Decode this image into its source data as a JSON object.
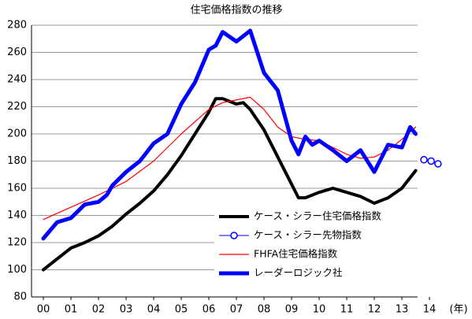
{
  "chart_data": {
    "type": "line",
    "title": "住宅価格指数の推移",
    "xlabel": "(年)",
    "xlim": [
      1999.57,
      2014.6
    ],
    "ylim": [
      80,
      280
    ],
    "xticks": [
      {
        "value": 2000,
        "label": "00"
      },
      {
        "value": 2001,
        "label": "01"
      },
      {
        "value": 2002,
        "label": "02"
      },
      {
        "value": 2003,
        "label": "03"
      },
      {
        "value": 2004,
        "label": "04"
      },
      {
        "value": 2005,
        "label": "05"
      },
      {
        "value": 2006,
        "label": "06"
      },
      {
        "value": 2007,
        "label": "07"
      },
      {
        "value": 2008,
        "label": "08"
      },
      {
        "value": 2009,
        "label": "09"
      },
      {
        "value": 2010,
        "label": "10"
      },
      {
        "value": 2011,
        "label": "11"
      },
      {
        "value": 2012,
        "label": "12"
      },
      {
        "value": 2013,
        "label": "13"
      },
      {
        "value": 2014,
        "label": "14"
      }
    ],
    "yticks": [
      80,
      100,
      120,
      140,
      160,
      180,
      200,
      220,
      240,
      260,
      280
    ],
    "grid": true,
    "legend": "lower right",
    "series": [
      {
        "name": "ケース・シラー住宅価格指数",
        "color": "#000000",
        "width": 4,
        "x": [
          2000,
          2000.5,
          2001,
          2001.5,
          2002,
          2002.5,
          2003,
          2003.5,
          2004,
          2004.5,
          2005,
          2005.5,
          2006,
          2006.25,
          2006.5,
          2007,
          2007.25,
          2007.5,
          2008,
          2008.5,
          2009,
          2009.25,
          2009.5,
          2010,
          2010.5,
          2011,
          2011.5,
          2012,
          2012.5,
          2013,
          2013.5
        ],
        "values": [
          100,
          108,
          116,
          120,
          125,
          132,
          141,
          149,
          158,
          170,
          184,
          200,
          216,
          226,
          226,
          222,
          223,
          218,
          203,
          183,
          163,
          153,
          153,
          157,
          160,
          157,
          154,
          149,
          153,
          160,
          173
        ]
      },
      {
        "name": "ケース・シラー先物指数",
        "color": "#0000ff",
        "width": 1,
        "marker": "circle",
        "x": [
          2013.8,
          2014.06,
          2014.31
        ],
        "values": [
          181,
          180,
          178
        ]
      },
      {
        "name": "FHFA住宅価格指数",
        "color": "#ff0000",
        "width": 1.2,
        "x": [
          2000,
          2001,
          2002,
          2003,
          2004,
          2005,
          2006,
          2006.5,
          2007,
          2007.5,
          2008,
          2008.5,
          2009,
          2009.5,
          2010,
          2010.5,
          2011,
          2011.5,
          2012,
          2012.5,
          2013,
          2013.5
        ],
        "values": [
          137,
          146,
          155,
          165,
          180,
          200,
          218,
          223,
          225,
          227,
          218,
          205,
          198,
          196,
          195,
          190,
          185,
          182,
          183,
          188,
          196,
          205
        ]
      },
      {
        "name": "レーダーロジック社",
        "color": "#0000ff",
        "width": 5,
        "x": [
          2000,
          2000.5,
          2001,
          2001.5,
          2002,
          2002.3,
          2002.5,
          2003,
          2003.5,
          2004,
          2004.5,
          2005,
          2005.5,
          2006,
          2006.25,
          2006.5,
          2007,
          2007.25,
          2007.5,
          2008,
          2008.5,
          2009,
          2009.25,
          2009.5,
          2009.75,
          2010,
          2010.5,
          2011,
          2011.5,
          2012,
          2012.5,
          2013,
          2013.3,
          2013.5
        ],
        "values": [
          123,
          135,
          138,
          148,
          150,
          155,
          162,
          172,
          180,
          193,
          200,
          222,
          238,
          262,
          265,
          275,
          268,
          272,
          276,
          245,
          232,
          195,
          185,
          198,
          192,
          195,
          188,
          180,
          188,
          172,
          192,
          190,
          205,
          200
        ]
      }
    ]
  }
}
